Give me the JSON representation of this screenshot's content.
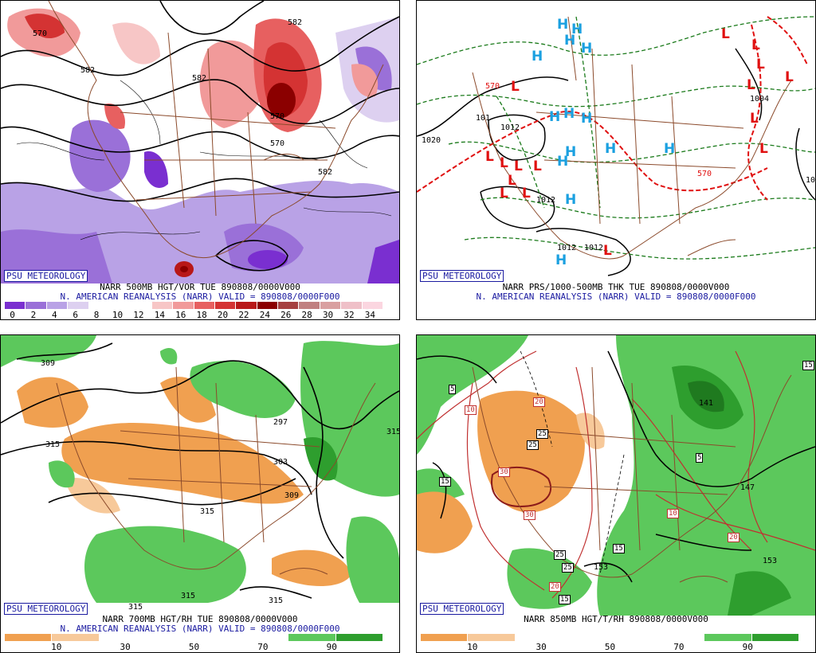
{
  "panels": {
    "tl": {
      "badge": "PSU METEOROLOGY",
      "caption1": "NARR 500MB HGT/VOR TUE 890808/0000V000",
      "caption2": "N. AMERICAN REANALYSIS (NARR) VALID = 890808/0000F000",
      "colorbar": {
        "ticks": [
          "0",
          "2",
          "4",
          "6",
          "8",
          "10",
          "12",
          "14",
          "16",
          "18",
          "20",
          "22",
          "24",
          "26",
          "28",
          "30",
          "32",
          "34"
        ],
        "colors": [
          "#7a2fd0",
          "#9a70d8",
          "#b9a2e6",
          "#ddd0f0",
          "#ffffff",
          "#ffffff",
          "#ffffff",
          "#f7c6c6",
          "#f19a9a",
          "#e76060",
          "#d43333",
          "#b81818",
          "#8b0000",
          "#a64040",
          "#c08080",
          "#d9a0a0",
          "#efc0c8",
          "#fbd6e0"
        ]
      },
      "contour_labels": [
        "570",
        "582",
        "582",
        "570",
        "582",
        "570",
        "582"
      ]
    },
    "tr": {
      "badge": "PSU METEOROLOGY",
      "caption1": "NARR PRS/1000-500MB THK TUE 890808/0000V000",
      "caption2": "N. AMERICAN REANALYSIS (NARR) VALID = 890808/0000F000",
      "highs": [
        "H",
        "H",
        "H",
        "H",
        "H",
        "H",
        "H",
        "H",
        "H",
        "H",
        "H",
        "H",
        "H",
        "H"
      ],
      "lows": [
        "L",
        "L",
        "L",
        "L",
        "L",
        "L",
        "L",
        "L",
        "L",
        "L",
        "L",
        "L",
        "L",
        "L",
        "L",
        "L",
        "L",
        "L"
      ],
      "contour_labels": [
        "1020",
        "1012",
        "1012",
        "1012",
        "1012",
        "1004",
        "101",
        "101",
        "570",
        "570"
      ]
    },
    "bl": {
      "badge": "PSU METEOROLOGY",
      "caption1": "NARR 700MB HGT/RH TUE 890808/0000V000",
      "caption2": "N. AMERICAN REANALYSIS (NARR) VALID = 890808/0000F000",
      "colorbar": {
        "ticks": [
          "10",
          "30",
          "50",
          "70",
          "90"
        ],
        "colors": [
          "#f0a050",
          "#f7c99a",
          "#ffffff",
          "#ffffff",
          "#ffffff",
          "#ffffff",
          "#5cc85c",
          "#2e9e2e"
        ]
      },
      "contour_labels": [
        "309",
        "315",
        "297",
        "303",
        "309",
        "315",
        "315",
        "315",
        "315",
        "315"
      ]
    },
    "br": {
      "badge": "PSU METEOROLOGY",
      "caption1": "NARR 850MB HGT/T/RH 890808/0000V000",
      "colorbar": {
        "ticks": [
          "10",
          "30",
          "50",
          "70",
          "90"
        ],
        "colors": [
          "#f0a050",
          "#f7c99a",
          "#ffffff",
          "#ffffff",
          "#ffffff",
          "#ffffff",
          "#5cc85c",
          "#2e9e2e"
        ]
      },
      "box_labels": [
        "5",
        "10",
        "20",
        "25",
        "25",
        "30",
        "30",
        "25",
        "25",
        "20",
        "15",
        "15",
        "5",
        "10",
        "20",
        "15",
        "15"
      ],
      "contour_labels": [
        "141",
        "147",
        "153",
        "153"
      ]
    }
  }
}
